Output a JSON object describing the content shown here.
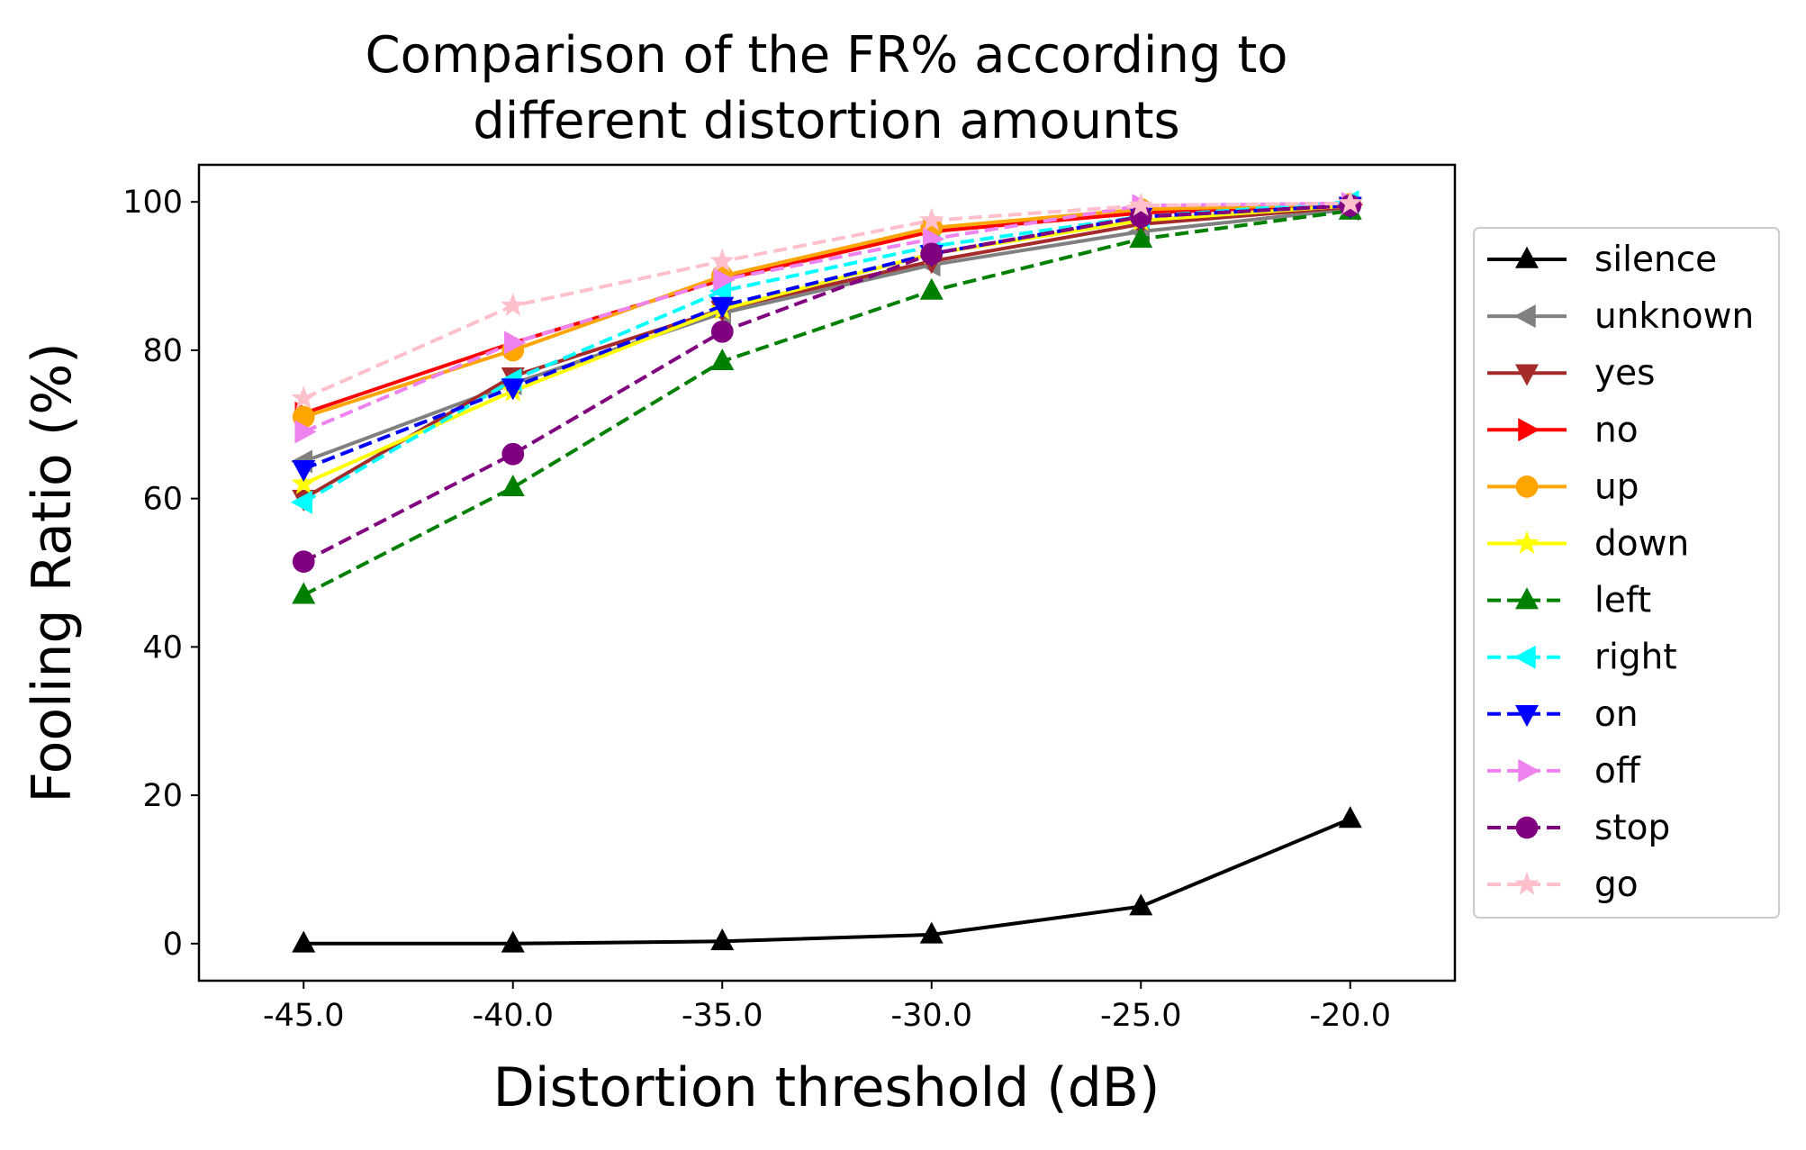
{
  "chart_data": {
    "type": "line",
    "title": [
      "Comparison of the FR% according to",
      "different distortion amounts"
    ],
    "xlabel": "Distortion threshold (dB)",
    "ylabel": "Fooling Ratio (%)",
    "x": [
      -45.0,
      -40.0,
      -35.0,
      -30.0,
      -25.0,
      -20.0
    ],
    "x_tick_labels": [
      "-45.0",
      "-40.0",
      "-35.0",
      "-30.0",
      "-25.0",
      "-20.0"
    ],
    "y_ticks": [
      0,
      20,
      40,
      60,
      80,
      100
    ],
    "y_tick_labels": [
      "0",
      "20",
      "40",
      "60",
      "80",
      "100"
    ],
    "xlim": [
      -47.5,
      -17.5
    ],
    "ylim": [
      -5,
      105
    ],
    "grid": false,
    "legend_position": "right-outside",
    "series": [
      {
        "name": "silence",
        "color": "#000000",
        "dash": "solid",
        "marker": "triangle-up",
        "values": [
          0,
          0,
          0.3,
          1.2,
          5,
          16.8
        ]
      },
      {
        "name": "unknown",
        "color": "#808080",
        "dash": "solid",
        "marker": "triangle-left",
        "values": [
          65,
          75.5,
          85,
          91.5,
          96,
          99
        ]
      },
      {
        "name": "yes",
        "color": "#a52a2a",
        "dash": "solid",
        "marker": "triangle-down",
        "values": [
          60,
          76.5,
          85.5,
          92,
          97,
          99.3
        ]
      },
      {
        "name": "no",
        "color": "#ff0000",
        "dash": "solid",
        "marker": "triangle-right",
        "values": [
          71.5,
          81,
          89.5,
          96,
          98.5,
          99.6
        ]
      },
      {
        "name": "up",
        "color": "#ffa500",
        "dash": "solid",
        "marker": "circle",
        "values": [
          71,
          80,
          90,
          96.5,
          99,
          99.7
        ]
      },
      {
        "name": "down",
        "color": "#ffff00",
        "dash": "solid",
        "marker": "star",
        "values": [
          62,
          74.5,
          85.5,
          93,
          97.5,
          99.5
        ]
      },
      {
        "name": "left",
        "color": "#008000",
        "dash": "dashed",
        "marker": "triangle-up",
        "values": [
          47,
          61.5,
          78.5,
          88,
          95,
          98.8
        ]
      },
      {
        "name": "right",
        "color": "#00ffff",
        "dash": "dashed",
        "marker": "triangle-left",
        "values": [
          59.5,
          76,
          88,
          94,
          98,
          100
        ]
      },
      {
        "name": "on",
        "color": "#0000ff",
        "dash": "dashed",
        "marker": "triangle-down",
        "values": [
          64,
          75,
          86,
          93,
          98,
          99.5
        ]
      },
      {
        "name": "off",
        "color": "#ee82ee",
        "dash": "dashed",
        "marker": "triangle-right",
        "values": [
          69,
          81,
          89.5,
          95,
          99.5,
          99.8
        ]
      },
      {
        "name": "stop",
        "color": "#800080",
        "dash": "dashed",
        "marker": "circle",
        "values": [
          51.5,
          66,
          82.5,
          93,
          98,
          99.5
        ]
      },
      {
        "name": "go",
        "color": "#ffc0cb",
        "dash": "dashed",
        "marker": "star",
        "values": [
          73.5,
          86,
          92,
          97.5,
          99.5,
          99.8
        ]
      }
    ]
  }
}
